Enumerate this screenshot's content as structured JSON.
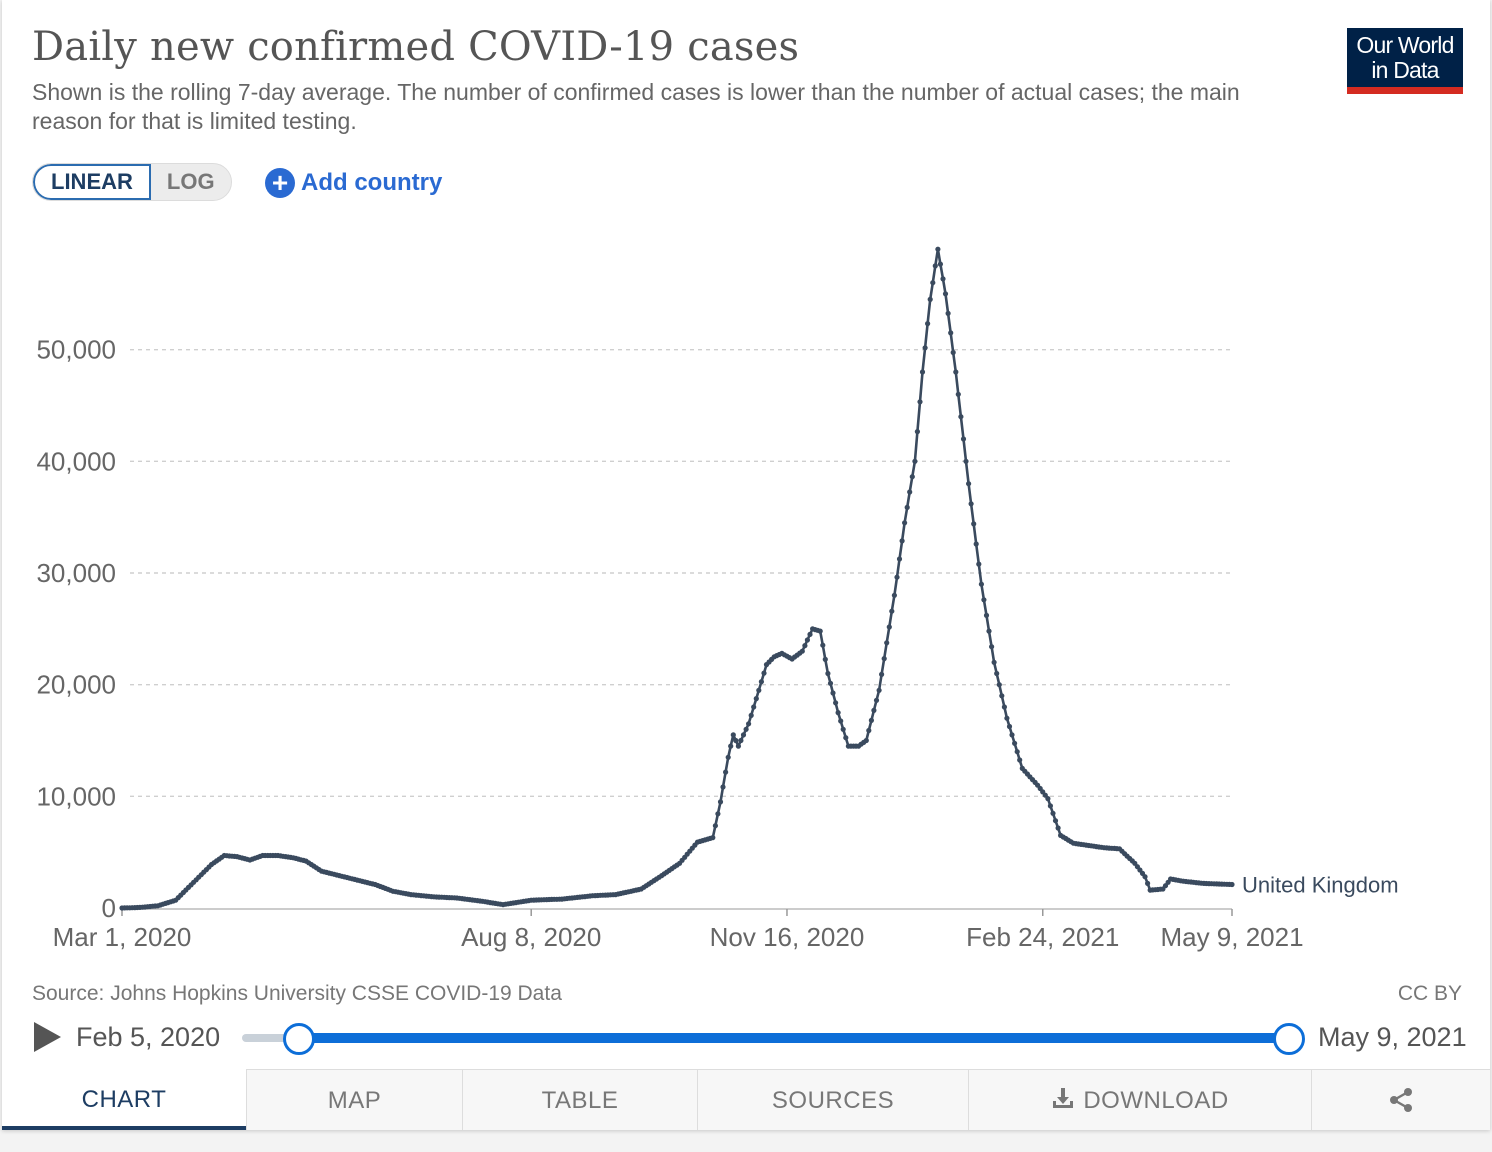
{
  "header": {
    "title": "Daily new confirmed COVID-19 cases",
    "subtitle": "Shown is the rolling 7-day average. The number of confirmed cases is lower than the number of actual cases; the main reason for that is limited testing.",
    "logo_line1": "Our World",
    "logo_line2": "in Data"
  },
  "controls": {
    "linear_label": "LINEAR",
    "log_label": "LOG",
    "add_country_label": "Add country"
  },
  "footer": {
    "source": "Source: Johns Hopkins University CSSE COVID-19 Data",
    "license": "CC BY"
  },
  "timeline": {
    "start_label": "Feb 5, 2020",
    "end_label": "May 9, 2021",
    "range_start": 0.054,
    "range_end": 1.0
  },
  "tabs": [
    {
      "label": "CHART"
    },
    {
      "label": "MAP"
    },
    {
      "label": "TABLE"
    },
    {
      "label": "SOURCES"
    },
    {
      "label": "DOWNLOAD"
    }
  ],
  "colors": {
    "line": "#3a4a5e",
    "accent": "#0d6ed8",
    "logo_bg": "#002147",
    "logo_bar": "#d42b21"
  },
  "icons": [
    "plus-icon",
    "play-icon",
    "download-icon",
    "share-icon"
  ],
  "chart_data": {
    "type": "line",
    "title": "Daily new confirmed COVID-19 cases",
    "x_start": "2020-03-01",
    "x_end": "2021-05-09",
    "ylim": [
      0,
      60000
    ],
    "yticks": [
      0,
      10000,
      20000,
      30000,
      40000,
      50000
    ],
    "ytick_labels": [
      "0",
      "10,000",
      "20,000",
      "30,000",
      "40,000",
      "50,000"
    ],
    "xtick_dates": [
      "2020-03-01",
      "2020-08-08",
      "2020-11-16",
      "2021-02-24",
      "2021-05-09"
    ],
    "xtick_labels": [
      "Mar 1, 2020",
      "Aug 8, 2020",
      "Nov 16, 2020",
      "Feb 24, 2021",
      "May 9, 2021"
    ],
    "grid": true,
    "series": [
      {
        "name": "United Kingdom",
        "points": [
          [
            "2020-03-01",
            0
          ],
          [
            "2020-03-08",
            50
          ],
          [
            "2020-03-15",
            200
          ],
          [
            "2020-03-22",
            700
          ],
          [
            "2020-03-29",
            2300
          ],
          [
            "2020-04-05",
            3900
          ],
          [
            "2020-04-10",
            4700
          ],
          [
            "2020-04-15",
            4600
          ],
          [
            "2020-04-20",
            4300
          ],
          [
            "2020-04-25",
            4700
          ],
          [
            "2020-05-01",
            4700
          ],
          [
            "2020-05-07",
            4500
          ],
          [
            "2020-05-12",
            4200
          ],
          [
            "2020-05-18",
            3300
          ],
          [
            "2020-05-25",
            2900
          ],
          [
            "2020-06-01",
            2500
          ],
          [
            "2020-06-08",
            2100
          ],
          [
            "2020-06-15",
            1500
          ],
          [
            "2020-06-22",
            1200
          ],
          [
            "2020-07-01",
            1000
          ],
          [
            "2020-07-10",
            900
          ],
          [
            "2020-07-20",
            600
          ],
          [
            "2020-07-28",
            300
          ],
          [
            "2020-08-08",
            700
          ],
          [
            "2020-08-20",
            800
          ],
          [
            "2020-09-01",
            1100
          ],
          [
            "2020-09-10",
            1200
          ],
          [
            "2020-09-20",
            1700
          ],
          [
            "2020-09-28",
            2900
          ],
          [
            "2020-10-05",
            4000
          ],
          [
            "2020-10-12",
            5900
          ],
          [
            "2020-10-18",
            6300
          ],
          [
            "2020-10-21",
            9500
          ],
          [
            "2020-10-24",
            13500
          ],
          [
            "2020-10-26",
            15500
          ],
          [
            "2020-10-28",
            14500
          ],
          [
            "2020-11-01",
            16500
          ],
          [
            "2020-11-05",
            19500
          ],
          [
            "2020-11-08",
            21800
          ],
          [
            "2020-11-11",
            22500
          ],
          [
            "2020-11-14",
            22800
          ],
          [
            "2020-11-18",
            22300
          ],
          [
            "2020-11-22",
            23000
          ],
          [
            "2020-11-26",
            25000
          ],
          [
            "2020-11-29",
            24800
          ],
          [
            "2020-12-02",
            21000
          ],
          [
            "2020-12-06",
            17500
          ],
          [
            "2020-12-10",
            14500
          ],
          [
            "2020-12-14",
            14500
          ],
          [
            "2020-12-17",
            15000
          ],
          [
            "2020-12-22",
            19500
          ],
          [
            "2020-12-28",
            28000
          ],
          [
            "2021-01-01",
            34500
          ],
          [
            "2021-01-05",
            40000
          ],
          [
            "2021-01-08",
            48000
          ],
          [
            "2021-01-11",
            54500
          ],
          [
            "2021-01-14",
            59000
          ],
          [
            "2021-01-17",
            55000
          ],
          [
            "2021-01-21",
            48000
          ],
          [
            "2021-01-26",
            38000
          ],
          [
            "2021-01-31",
            29000
          ],
          [
            "2021-02-05",
            22000
          ],
          [
            "2021-02-10",
            17000
          ],
          [
            "2021-02-16",
            12500
          ],
          [
            "2021-02-22",
            11000
          ],
          [
            "2021-02-26",
            9800
          ],
          [
            "2021-03-03",
            6500
          ],
          [
            "2021-03-08",
            5800
          ],
          [
            "2021-03-14",
            5600
          ],
          [
            "2021-03-20",
            5400
          ],
          [
            "2021-03-26",
            5300
          ],
          [
            "2021-04-01",
            4000
          ],
          [
            "2021-04-05",
            2800
          ],
          [
            "2021-04-07",
            1600
          ],
          [
            "2021-04-12",
            1700
          ],
          [
            "2021-04-15",
            2600
          ],
          [
            "2021-04-20",
            2400
          ],
          [
            "2021-04-28",
            2200
          ],
          [
            "2021-05-09",
            2100
          ]
        ]
      }
    ]
  }
}
